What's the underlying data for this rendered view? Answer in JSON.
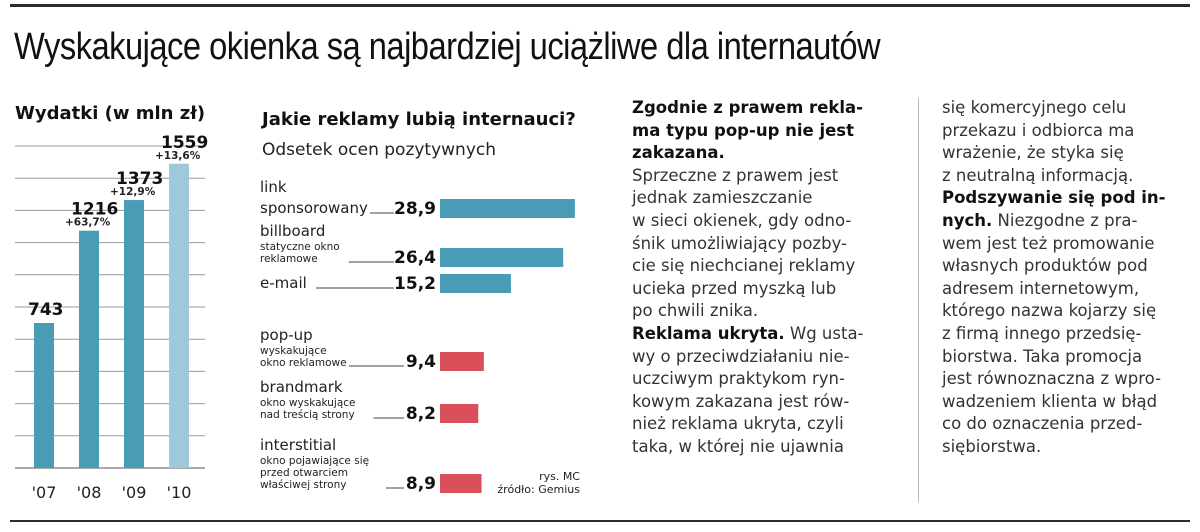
{
  "headline": "Wyskakujące okienka są najbardziej uciążliwe dla internautów",
  "colors": {
    "spending_bar": "#4a9bb5",
    "spending_bar_last": "#9dc9db",
    "bar_positive": "#4a9bb5",
    "bar_negative": "#d9505a"
  },
  "chart_data": [
    {
      "type": "bar",
      "title": "Wydatki (w mln zł)",
      "categories": [
        "'07",
        "'08",
        "'09",
        "'10"
      ],
      "values": [
        743,
        1216,
        1373,
        1559
      ],
      "value_labels": [
        "743",
        "1216",
        "1373",
        "1559"
      ],
      "growth_labels": [
        "",
        "+63,7%",
        "+12,9%",
        "+13,6%"
      ],
      "ylim": [
        0,
        1650
      ],
      "grid": true
    },
    {
      "type": "bar",
      "orientation": "horizontal",
      "title": "Jakie reklamy lubią internauci?",
      "subtitle": "Odsetek ocen pozytywnych",
      "categories": [
        {
          "label": "link",
          "label_lines": [
            "link",
            "sponsorowany"
          ],
          "note_lines": []
        },
        {
          "label": "billboard",
          "label_lines": [
            "billboard"
          ],
          "note_lines": [
            "statyczne okno",
            "reklamowe"
          ]
        },
        {
          "label": "e-mail",
          "label_lines": [
            "e-mail"
          ],
          "note_lines": []
        },
        {
          "label": "pop-up",
          "label_lines": [
            "pop-up"
          ],
          "note_lines": [
            "wyskakujące",
            "okno reklamowe"
          ]
        },
        {
          "label": "brandmark",
          "label_lines": [
            "brandmark"
          ],
          "note_lines": [
            "okno wyskakujące",
            "nad treścią strony"
          ]
        },
        {
          "label": "interstitial",
          "label_lines": [
            "interstitial"
          ],
          "note_lines": [
            "okno pojawiające się",
            "przed otwarciem",
            "właściwej strony"
          ]
        }
      ],
      "values": [
        28.9,
        26.4,
        15.2,
        9.4,
        8.2,
        8.9
      ],
      "value_labels": [
        "28,9",
        "26,4",
        "15,2",
        "9,4",
        "8,2",
        "8,9"
      ],
      "bar_colors": [
        "#4a9bb5",
        "#4a9bb5",
        "#4a9bb5",
        "#d9505a",
        "#d9505a",
        "#d9505a"
      ],
      "xlim": [
        0,
        30
      ]
    }
  ],
  "credit": {
    "line1": "rys. MC",
    "line2": "źródło: Gemius"
  },
  "article": {
    "col1": [
      {
        "lead": "Zgodnie z prawem rekla-\nma typu pop-up nie jest\nzakazana.",
        "text": "\nSprzeczne z prawem jest\njednak zamieszczanie\nw sieci okienek, gdy odno-\nśnik umożliwiający pozby-\ncie się niechcianej reklamy\nucieka przed myszką lub\npo chwili znika."
      },
      {
        "lead": "Reklama ukryta.",
        "text": " Wg usta-\nwy o przeciwdziałaniu nie-\nuczciwym praktykom ryn-\nkowym zakazana jest rów-\nnież reklama ukryta, czyli\ntaka, w której nie ujawnia"
      }
    ],
    "col2": [
      {
        "lead": "",
        "text": "się komercyjnego celu\nprzekazu i odbiorca ma\nwrażenie, że styka się\nz neutralną informacją."
      },
      {
        "lead": "Podszywanie się pod in-\nnych.",
        "text": " Niezgodne z pra-\nwem jest też promowanie\nwłasnych produktów pod\nadresem internetowym,\nktórego nazwa kojarzy się\nz firmą innego przedsię-\nbiorstwa. Taka promocja\njest równoznaczna z wpro-\nwadzeniem klienta w błąd\nco do oznaczenia przed-\nsiębiorstwa."
      }
    ]
  }
}
